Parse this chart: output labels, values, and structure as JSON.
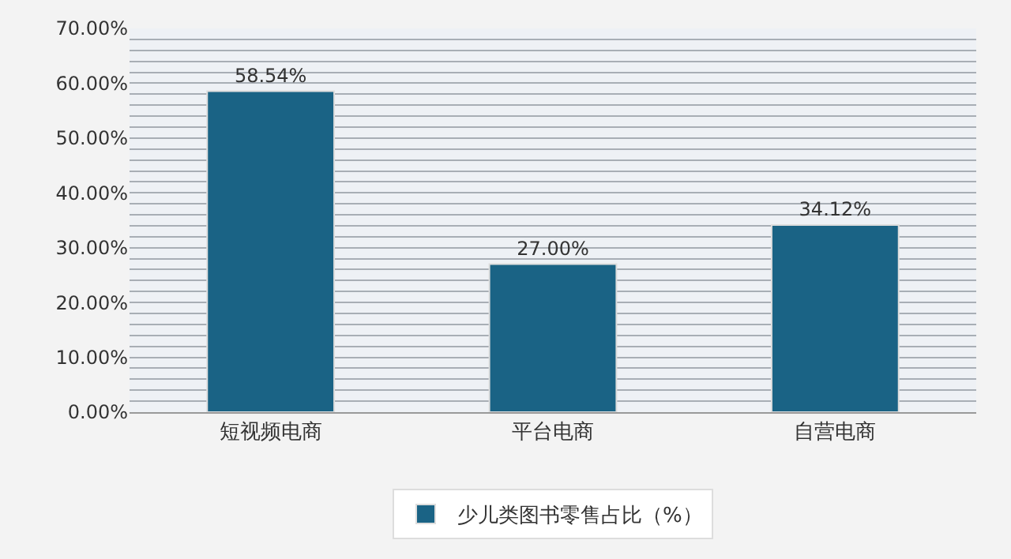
{
  "chart_data": {
    "type": "bar",
    "categories": [
      "短视频电商",
      "平台电商",
      "自营电商"
    ],
    "series": [
      {
        "name": "少儿类图书零售占比（%）",
        "color": "#1a6385",
        "values": [
          58.54,
          27.0,
          34.12
        ],
        "value_labels": [
          "58.54%",
          "27.00%",
          "34.12%"
        ]
      }
    ],
    "ylim": [
      0,
      70
    ],
    "yticks": [
      {
        "value": 0,
        "label": "0.00%"
      },
      {
        "value": 2,
        "label": null
      },
      {
        "value": 4,
        "label": null
      },
      {
        "value": 6,
        "label": null
      },
      {
        "value": 8,
        "label": null
      },
      {
        "value": 10,
        "label": "10.00%"
      },
      {
        "value": 12,
        "label": null
      },
      {
        "value": 14,
        "label": null
      },
      {
        "value": 16,
        "label": null
      },
      {
        "value": 18,
        "label": null
      },
      {
        "value": 20,
        "label": "20.00%"
      },
      {
        "value": 22,
        "label": null
      },
      {
        "value": 24,
        "label": null
      },
      {
        "value": 26,
        "label": null
      },
      {
        "value": 28,
        "label": null
      },
      {
        "value": 30,
        "label": "30.00%"
      },
      {
        "value": 32,
        "label": null
      },
      {
        "value": 34,
        "label": null
      },
      {
        "value": 36,
        "label": null
      },
      {
        "value": 38,
        "label": null
      },
      {
        "value": 40,
        "label": "40.00%"
      },
      {
        "value": 42,
        "label": null
      },
      {
        "value": 44,
        "label": null
      },
      {
        "value": 46,
        "label": null
      },
      {
        "value": 48,
        "label": null
      },
      {
        "value": 50,
        "label": "50.00%"
      },
      {
        "value": 52,
        "label": null
      },
      {
        "value": 54,
        "label": null
      },
      {
        "value": 56,
        "label": null
      },
      {
        "value": 58,
        "label": null
      },
      {
        "value": 60,
        "label": "60.00%"
      },
      {
        "value": 62,
        "label": null
      },
      {
        "value": 64,
        "label": null
      },
      {
        "value": 66,
        "label": null
      },
      {
        "value": 68,
        "label": null
      },
      {
        "value": 70,
        "label": "70.00%"
      }
    ],
    "grid": "y",
    "legend": "bottom"
  }
}
